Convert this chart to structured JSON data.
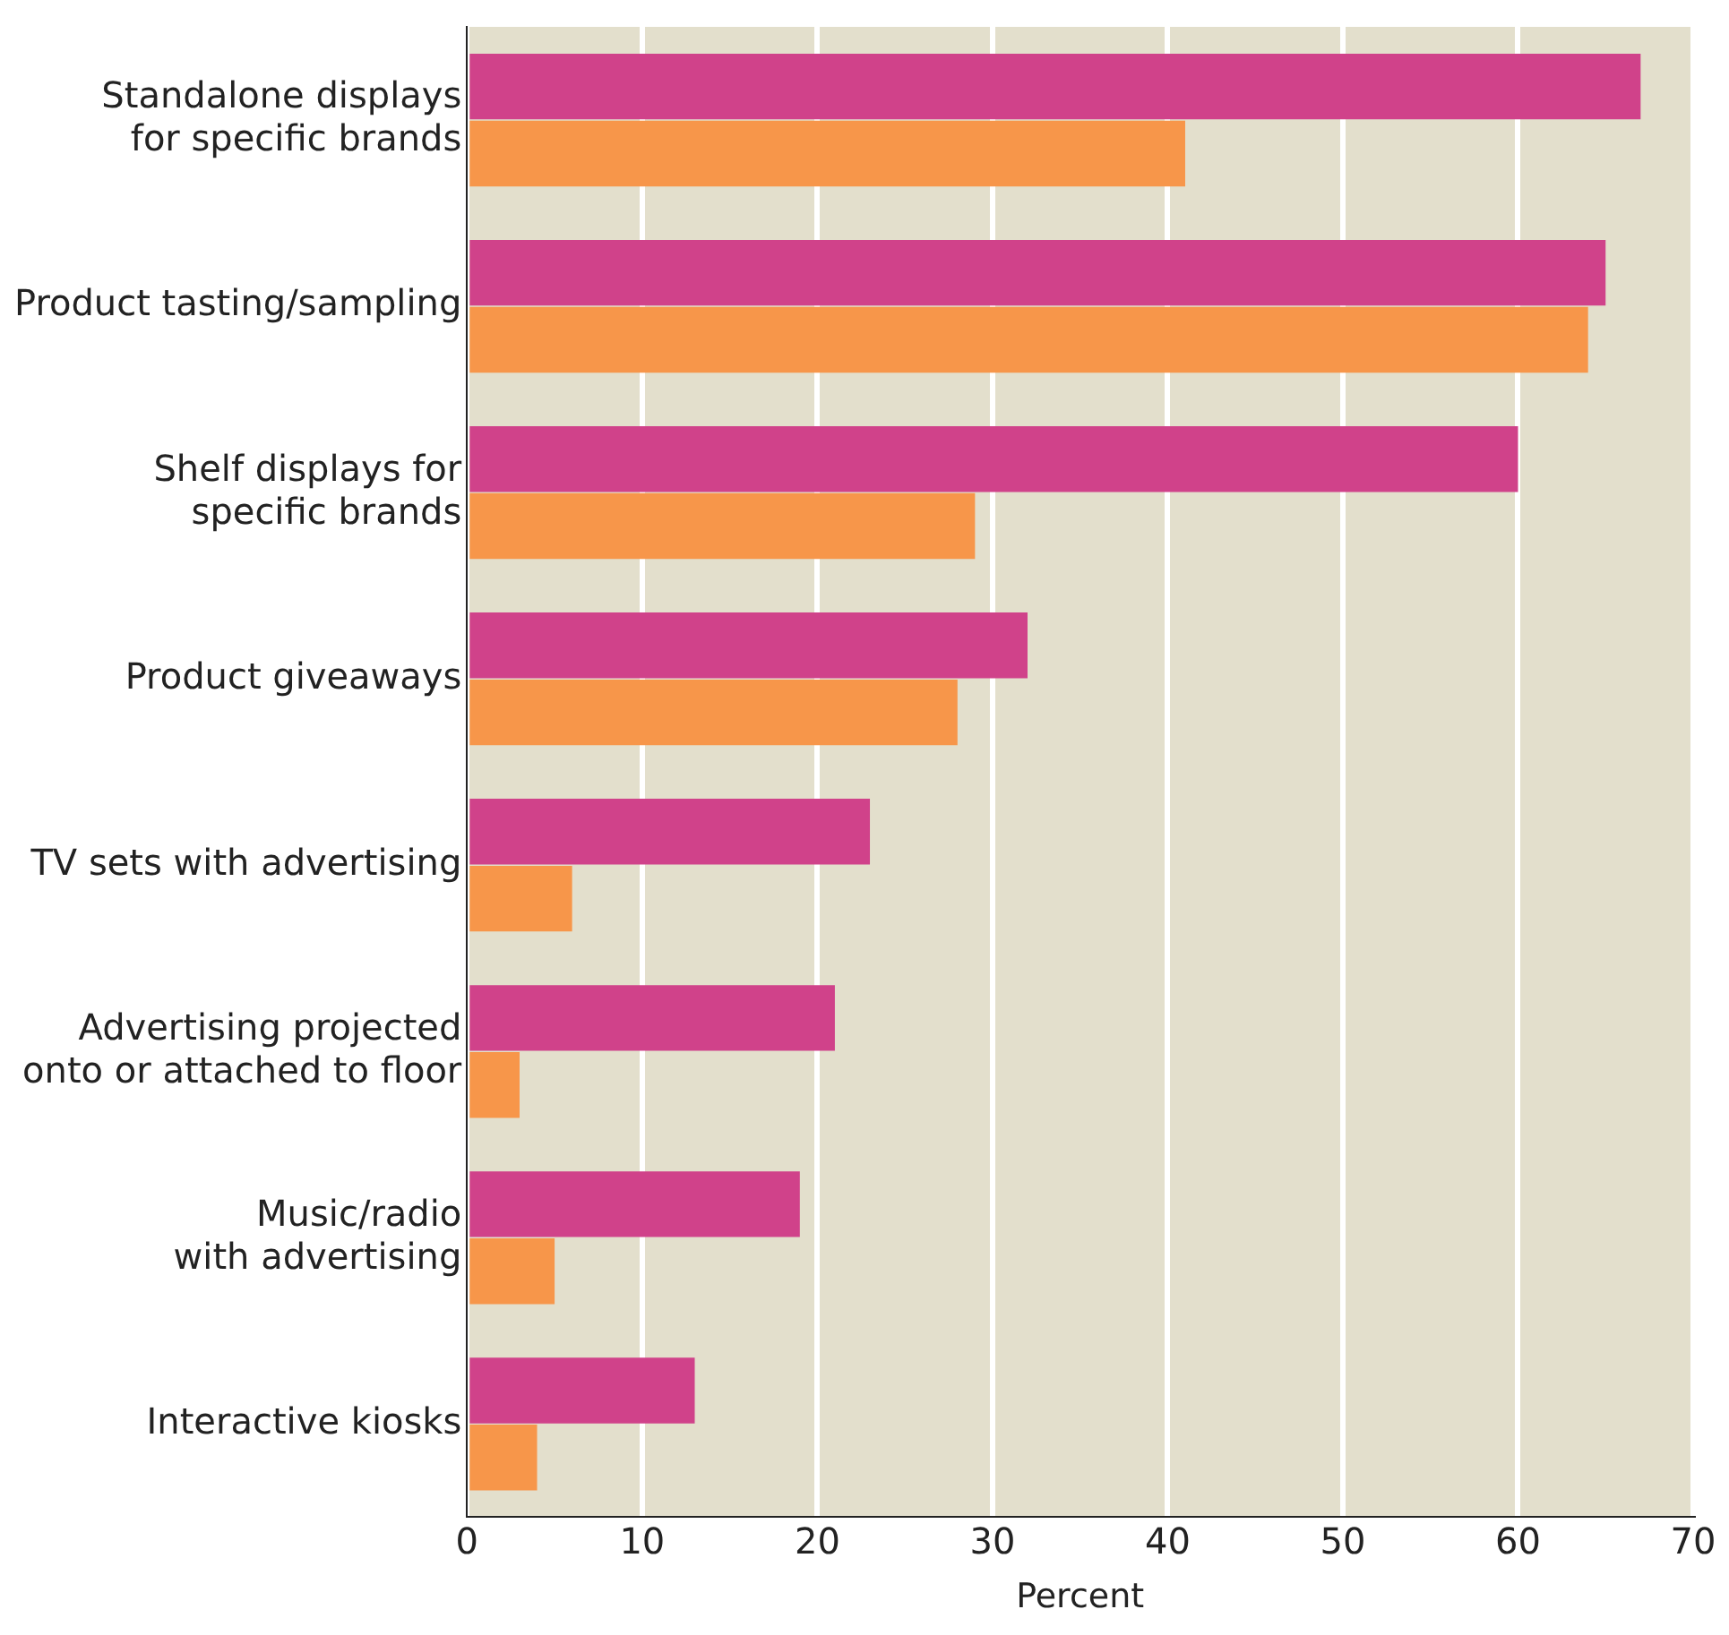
{
  "chart_data": {
    "type": "bar",
    "orientation": "horizontal",
    "xlabel": "Percent",
    "categories": [
      "Standalone displays\nfor specific brands",
      "Product tasting/sampling",
      "Shelf displays for\nspecific brands",
      "Product giveaways",
      "TV sets with advertising",
      "Advertising projected\nonto or attached to floor",
      "Music/radio\nwith advertising",
      "Interactive kiosks"
    ],
    "series": [
      {
        "color": "#d0428a",
        "values": [
          67,
          65,
          60,
          32,
          23,
          21,
          19,
          13
        ]
      },
      {
        "color": "#f7964a",
        "values": [
          41,
          64,
          29,
          28,
          6,
          3,
          5,
          4
        ]
      }
    ],
    "xlim": [
      0,
      70
    ],
    "xticks": [
      0,
      10,
      20,
      30,
      40,
      50,
      60,
      70
    ],
    "grid": "x",
    "legend": false
  }
}
